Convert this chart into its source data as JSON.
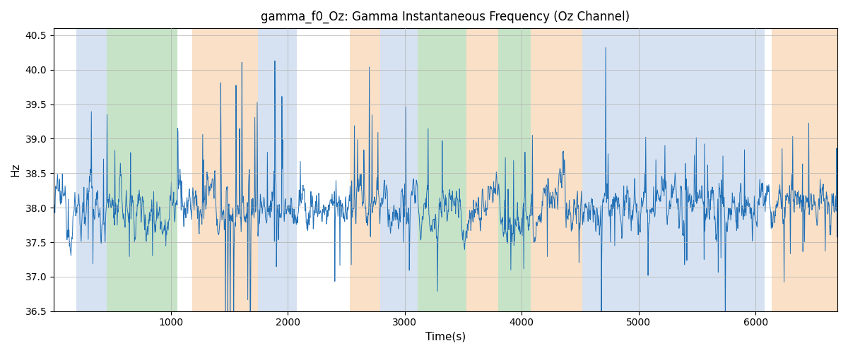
{
  "title": "gamma_f0_Oz: Gamma Instantaneous Frequency (Oz Channel)",
  "xlabel": "Time(s)",
  "ylabel": "Hz",
  "ylim": [
    36.5,
    40.6
  ],
  "xlim": [
    0,
    6700
  ],
  "line_color": "#1f6eb5",
  "line_width": 0.7,
  "background_color": "#ffffff",
  "grid_color": "#b0b0b0",
  "shaded_regions": [
    {
      "xmin": 195,
      "xmax": 450,
      "color": "#aec6e4",
      "alpha": 0.5
    },
    {
      "xmin": 450,
      "xmax": 1060,
      "color": "#90c990",
      "alpha": 0.5
    },
    {
      "xmin": 1185,
      "xmax": 1745,
      "color": "#f5c897",
      "alpha": 0.55
    },
    {
      "xmin": 1745,
      "xmax": 2080,
      "color": "#aec6e4",
      "alpha": 0.5
    },
    {
      "xmin": 2530,
      "xmax": 2790,
      "color": "#f5c897",
      "alpha": 0.55
    },
    {
      "xmin": 2790,
      "xmax": 3110,
      "color": "#aec6e4",
      "alpha": 0.5
    },
    {
      "xmin": 3110,
      "xmax": 3530,
      "color": "#90c990",
      "alpha": 0.5
    },
    {
      "xmin": 3530,
      "xmax": 3800,
      "color": "#f5c897",
      "alpha": 0.55
    },
    {
      "xmin": 3800,
      "xmax": 4080,
      "color": "#90c990",
      "alpha": 0.5
    },
    {
      "xmin": 4080,
      "xmax": 4520,
      "color": "#f5c897",
      "alpha": 0.55
    },
    {
      "xmin": 4520,
      "xmax": 6080,
      "color": "#aec6e4",
      "alpha": 0.5
    },
    {
      "xmin": 6140,
      "xmax": 6700,
      "color": "#f5c897",
      "alpha": 0.55
    }
  ],
  "xticks": [
    1000,
    2000,
    3000,
    4000,
    5000,
    6000
  ],
  "yticks": [
    36.5,
    37.0,
    37.5,
    38.0,
    38.5,
    39.0,
    39.5,
    40.0,
    40.5
  ]
}
